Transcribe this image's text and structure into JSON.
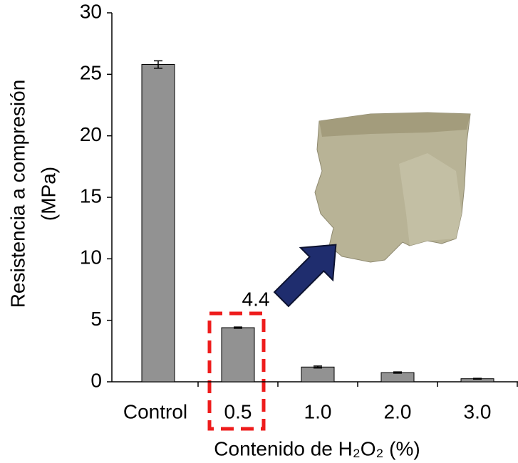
{
  "chart_data": {
    "type": "bar",
    "y_label": [
      "Resistencia a compresión",
      "(MPa)"
    ],
    "x_label": "Contenido de H₂O₂ (%)",
    "categories": [
      "Control",
      "0.5",
      "1.0",
      "2.0",
      "3.0"
    ],
    "values": [
      25.8,
      4.4,
      1.2,
      0.75,
      0.25
    ],
    "errors": [
      0.3,
      0.05,
      0.08,
      0.05,
      0.03
    ],
    "value_labels": [
      null,
      "4.4",
      null,
      null,
      null
    ],
    "color": "#929292",
    "ylim": [
      0,
      30
    ],
    "yticks": [
      0,
      5,
      10,
      15,
      20,
      25,
      30
    ]
  }
}
